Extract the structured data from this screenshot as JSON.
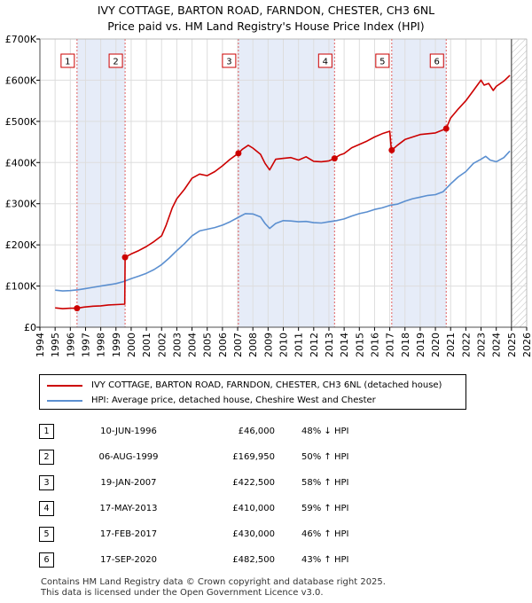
{
  "title_line1": "IVY COTTAGE, BARTON ROAD, FARNDON, CHESTER, CH3 6NL",
  "title_line2": "Price paid vs. HM Land Registry's House Price Index (HPI)",
  "legend": {
    "property_label": "IVY COTTAGE, BARTON ROAD, FARNDON, CHESTER, CH3 6NL (detached house)",
    "hpi_label": "HPI: Average price, detached house, Cheshire West and Chester"
  },
  "sales": [
    {
      "num": "1",
      "date": "10-JUN-1996",
      "price": "£46,000",
      "hpi": "48% ↓ HPI"
    },
    {
      "num": "2",
      "date": "06-AUG-1999",
      "price": "£169,950",
      "hpi": "50% ↑ HPI"
    },
    {
      "num": "3",
      "date": "19-JAN-2007",
      "price": "£422,500",
      "hpi": "58% ↑ HPI"
    },
    {
      "num": "4",
      "date": "17-MAY-2013",
      "price": "£410,000",
      "hpi": "59% ↑ HPI"
    },
    {
      "num": "5",
      "date": "17-FEB-2017",
      "price": "£430,000",
      "hpi": "46% ↑ HPI"
    },
    {
      "num": "6",
      "date": "17-SEP-2020",
      "price": "£482,500",
      "hpi": "43% ↑ HPI"
    }
  ],
  "footer": {
    "line1": "Contains HM Land Registry data © Crown copyright and database right 2025.",
    "line2": "This data is licensed under the Open Government Licence v3.0."
  },
  "colors": {
    "property": "#cc0000",
    "hpi": "#5b8fd0",
    "shade": "#e6ecf8",
    "marker_line": "#e06060",
    "future_hatch": "#bbbbbb"
  },
  "chart_data": {
    "type": "line",
    "xlim": [
      1994,
      2026
    ],
    "ylim": [
      0,
      700000
    ],
    "y_ticks": [
      {
        "v": 0,
        "label": "£0"
      },
      {
        "v": 100000,
        "label": "£100K"
      },
      {
        "v": 200000,
        "label": "£200K"
      },
      {
        "v": 300000,
        "label": "£300K"
      },
      {
        "v": 400000,
        "label": "£400K"
      },
      {
        "v": 500000,
        "label": "£500K"
      },
      {
        "v": 600000,
        "label": "£600K"
      },
      {
        "v": 700000,
        "label": "£700K"
      }
    ],
    "x_ticks": [
      "1994",
      "1995",
      "1996",
      "1997",
      "1998",
      "1999",
      "2000",
      "2001",
      "2002",
      "2003",
      "2004",
      "2005",
      "2006",
      "2007",
      "2008",
      "2009",
      "2010",
      "2011",
      "2012",
      "2013",
      "2014",
      "2015",
      "2016",
      "2017",
      "2018",
      "2019",
      "2020",
      "2021",
      "2022",
      "2023",
      "2024",
      "2025",
      "2026"
    ],
    "grid": true,
    "data_end": 2025.0,
    "sale_markers": [
      {
        "label": "1",
        "x": 1996.44,
        "y": 46000
      },
      {
        "label": "2",
        "x": 1999.6,
        "y": 169950
      },
      {
        "label": "3",
        "x": 2007.05,
        "y": 422500
      },
      {
        "label": "4",
        "x": 2013.37,
        "y": 410000
      },
      {
        "label": "5",
        "x": 2017.13,
        "y": 430000
      },
      {
        "label": "6",
        "x": 2020.71,
        "y": 482500
      }
    ],
    "series": [
      {
        "name": "IVY COTTAGE, BARTON ROAD, FARNDON, CHESTER, CH3 6NL (detached house)",
        "x": [
          1995.0,
          1995.5,
          1996.0,
          1996.44,
          1996.9,
          1997.5,
          1998.0,
          1998.5,
          1999.0,
          1999.58,
          1999.6,
          2000.0,
          2000.5,
          2001.0,
          2001.5,
          2002.0,
          2002.3,
          2002.7,
          2003.0,
          2003.5,
          2004.0,
          2004.5,
          2005.0,
          2005.5,
          2006.0,
          2006.5,
          2007.05,
          2007.3,
          2007.7,
          2008.0,
          2008.5,
          2008.8,
          2009.1,
          2009.5,
          2010.0,
          2010.5,
          2011.0,
          2011.5,
          2012.0,
          2012.5,
          2013.0,
          2013.37,
          2013.7,
          2014.0,
          2014.5,
          2015.0,
          2015.5,
          2016.0,
          2016.5,
          2017.0,
          2017.1,
          2017.13,
          2017.5,
          2018.0,
          2018.5,
          2019.0,
          2019.5,
          2020.0,
          2020.71,
          2021.0,
          2021.5,
          2022.0,
          2022.5,
          2023.0,
          2023.2,
          2023.5,
          2023.8,
          2024.0,
          2024.5,
          2024.9
        ],
        "values": [
          47000,
          45000,
          46000,
          46000,
          49000,
          51000,
          52000,
          54000,
          55000,
          56000,
          169950,
          178000,
          186000,
          196000,
          208000,
          222000,
          248000,
          290000,
          312000,
          335000,
          362000,
          372000,
          368000,
          378000,
          392000,
          408000,
          422500,
          432000,
          442000,
          435000,
          420000,
          398000,
          382000,
          408000,
          410000,
          412000,
          406000,
          414000,
          403000,
          402000,
          404000,
          410000,
          418000,
          422000,
          436000,
          444000,
          452000,
          462000,
          470000,
          476000,
          432000,
          430000,
          442000,
          456000,
          462000,
          468000,
          470000,
          472000,
          482500,
          508000,
          530000,
          550000,
          575000,
          600000,
          588000,
          592000,
          575000,
          585000,
          598000,
          612000
        ]
      },
      {
        "name": "HPI: Average price, detached house, Cheshire West and Chester",
        "x": [
          1995.0,
          1995.5,
          1996.0,
          1996.5,
          1997.0,
          1997.5,
          1998.0,
          1998.5,
          1999.0,
          1999.5,
          2000.0,
          2000.5,
          2001.0,
          2001.5,
          2002.0,
          2002.5,
          2003.0,
          2003.5,
          2004.0,
          2004.5,
          2005.0,
          2005.5,
          2006.0,
          2006.5,
          2007.0,
          2007.5,
          2008.0,
          2008.5,
          2008.8,
          2009.1,
          2009.5,
          2010.0,
          2010.5,
          2011.0,
          2011.5,
          2012.0,
          2012.5,
          2013.0,
          2013.5,
          2014.0,
          2014.5,
          2015.0,
          2015.5,
          2016.0,
          2016.5,
          2017.0,
          2017.5,
          2018.0,
          2018.5,
          2019.0,
          2019.5,
          2020.0,
          2020.5,
          2021.0,
          2021.5,
          2022.0,
          2022.5,
          2023.0,
          2023.3,
          2023.6,
          2024.0,
          2024.5,
          2024.9
        ],
        "values": [
          90000,
          88000,
          89000,
          91000,
          94000,
          97000,
          100000,
          103000,
          106000,
          111000,
          118000,
          124000,
          131000,
          140000,
          152000,
          168000,
          186000,
          203000,
          222000,
          234000,
          238000,
          242000,
          248000,
          256000,
          266000,
          276000,
          275000,
          268000,
          252000,
          240000,
          252000,
          259000,
          258000,
          256000,
          257000,
          254000,
          253000,
          256000,
          259000,
          263000,
          270000,
          276000,
          280000,
          286000,
          290000,
          296000,
          299000,
          306000,
          312000,
          316000,
          320000,
          322000,
          329000,
          348000,
          365000,
          378000,
          398000,
          408000,
          415000,
          406000,
          402000,
          412000,
          428000
        ]
      }
    ]
  }
}
